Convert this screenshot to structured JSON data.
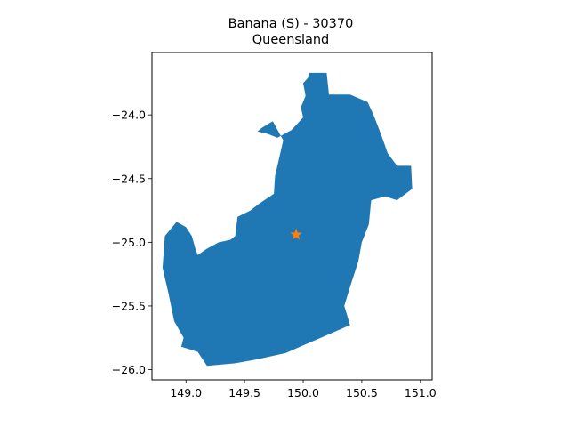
{
  "figure": {
    "title_line1": "Banana (S) - 30370",
    "title_line2": "Queensland"
  },
  "colors": {
    "region_fill": "#1f77b4",
    "marker_fill": "#ff7f0e",
    "axes_edge": "#000000"
  },
  "chart_data": {
    "type": "map",
    "title": "Banana (S) - 30370\nQueensland",
    "xlabel": "",
    "ylabel": "",
    "xlim": [
      148.71,
      151.1
    ],
    "ylim": [
      -26.08,
      -23.51
    ],
    "x_ticks": [
      {
        "value": 149.0,
        "label": "149.0"
      },
      {
        "value": 149.5,
        "label": "149.5"
      },
      {
        "value": 150.0,
        "label": "150.0"
      },
      {
        "value": 150.5,
        "label": "150.5"
      },
      {
        "value": 151.0,
        "label": "151.0"
      }
    ],
    "y_ticks": [
      {
        "value": -24.0,
        "label": "−24.0"
      },
      {
        "value": -24.5,
        "label": "−24.5"
      },
      {
        "value": -25.0,
        "label": "−25.0"
      },
      {
        "value": -25.5,
        "label": "−25.5"
      },
      {
        "value": -26.0,
        "label": "−26.0"
      }
    ],
    "region": {
      "name": "Banana (S)",
      "outline_lon_lat": [
        [
          150.04,
          -23.71
        ],
        [
          150.05,
          -23.67
        ],
        [
          150.2,
          -23.67
        ],
        [
          150.22,
          -23.84
        ],
        [
          150.4,
          -23.84
        ],
        [
          150.55,
          -23.9
        ],
        [
          150.6,
          -24.0
        ],
        [
          150.65,
          -24.12
        ],
        [
          150.69,
          -24.22
        ],
        [
          150.72,
          -24.3
        ],
        [
          150.8,
          -24.4
        ],
        [
          150.92,
          -24.4
        ],
        [
          150.93,
          -24.58
        ],
        [
          150.8,
          -24.67
        ],
        [
          150.7,
          -24.64
        ],
        [
          150.58,
          -24.67
        ],
        [
          150.56,
          -24.86
        ],
        [
          150.5,
          -25.0
        ],
        [
          150.47,
          -25.15
        ],
        [
          150.4,
          -25.35
        ],
        [
          150.35,
          -25.5
        ],
        [
          150.4,
          -25.65
        ],
        [
          150.2,
          -25.73
        ],
        [
          150.0,
          -25.81
        ],
        [
          149.85,
          -25.87
        ],
        [
          149.6,
          -25.92
        ],
        [
          149.42,
          -25.95
        ],
        [
          149.18,
          -25.97
        ],
        [
          149.1,
          -25.86
        ],
        [
          148.96,
          -25.82
        ],
        [
          148.98,
          -25.75
        ],
        [
          148.9,
          -25.62
        ],
        [
          148.85,
          -25.4
        ],
        [
          148.8,
          -25.2
        ],
        [
          148.82,
          -24.95
        ],
        [
          148.92,
          -24.84
        ],
        [
          149.0,
          -24.88
        ],
        [
          149.05,
          -24.95
        ],
        [
          149.08,
          -25.05
        ],
        [
          149.1,
          -25.1
        ],
        [
          149.18,
          -25.05
        ],
        [
          149.28,
          -25.0
        ],
        [
          149.38,
          -24.98
        ],
        [
          149.42,
          -24.95
        ],
        [
          149.44,
          -24.8
        ],
        [
          149.55,
          -24.75
        ],
        [
          149.62,
          -24.7
        ],
        [
          149.75,
          -24.62
        ],
        [
          149.76,
          -24.48
        ],
        [
          149.83,
          -24.2
        ],
        [
          149.74,
          -24.05
        ],
        [
          149.65,
          -24.1
        ],
        [
          149.61,
          -24.13
        ],
        [
          149.7,
          -24.15
        ],
        [
          149.78,
          -24.18
        ],
        [
          149.9,
          -24.12
        ],
        [
          150.0,
          -24.02
        ],
        [
          149.98,
          -23.94
        ],
        [
          150.02,
          -23.85
        ],
        [
          150.0,
          -23.75
        ]
      ]
    },
    "marker": {
      "lon": 149.94,
      "lat": -24.94,
      "symbol": "star"
    }
  }
}
